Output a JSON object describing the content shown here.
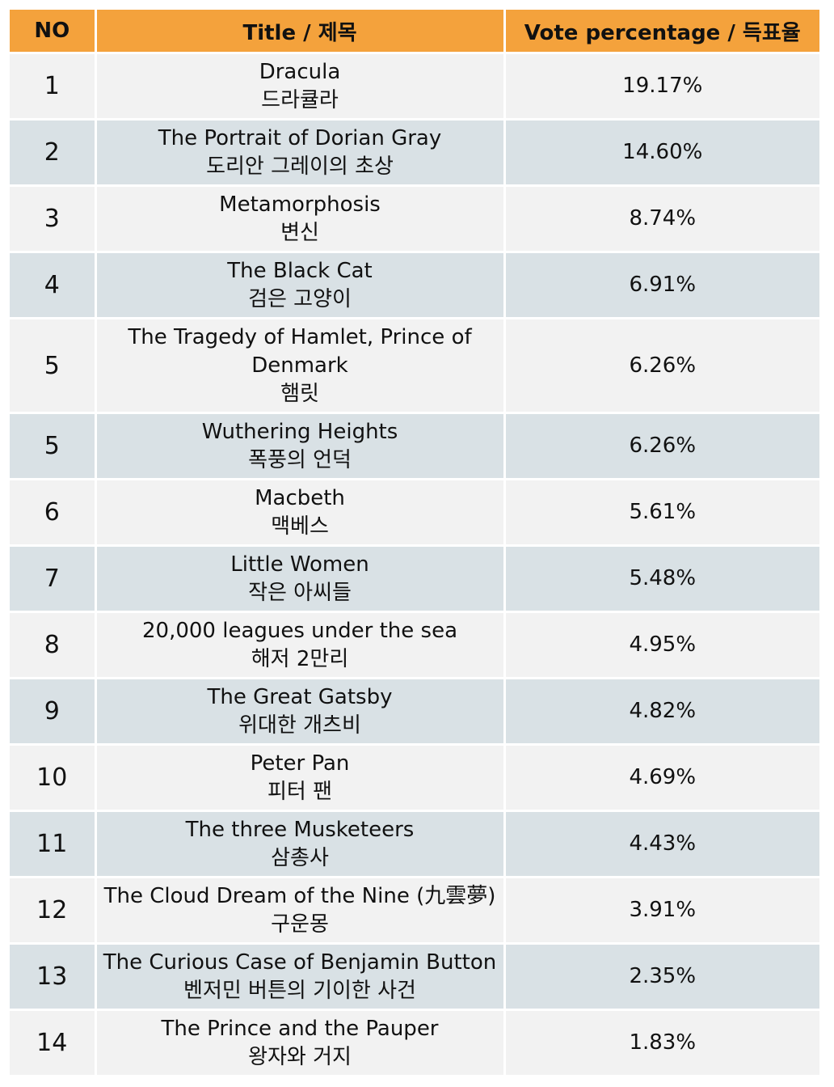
{
  "header": {
    "no": "NO",
    "title": "Title / 제목",
    "vote": "Vote percentage / 득표율"
  },
  "rows": [
    {
      "no": "1",
      "title_en": "Dracula",
      "title_ko": "드라큘라",
      "vote": "19.17%"
    },
    {
      "no": "2",
      "title_en": "The Portrait of Dorian Gray",
      "title_ko": "도리안 그레이의 초상",
      "vote": "14.60%"
    },
    {
      "no": "3",
      "title_en": "Metamorphosis",
      "title_ko": "변신",
      "vote": "8.74%"
    },
    {
      "no": "4",
      "title_en": "The Black Cat",
      "title_ko": "검은 고양이",
      "vote": "6.91%"
    },
    {
      "no": "5",
      "title_en_1": "The Tragedy of Hamlet, Prince of",
      "title_en_2": "Denmark",
      "title_ko": "햄릿",
      "vote": "6.26%"
    },
    {
      "no": "5",
      "title_en": "Wuthering Heights",
      "title_ko": "폭풍의 언덕",
      "vote": "6.26%"
    },
    {
      "no": "6",
      "title_en": "Macbeth",
      "title_ko": "맥베스",
      "vote": "5.61%"
    },
    {
      "no": "7",
      "title_en": "Little Women",
      "title_ko": "작은 아씨들",
      "vote": "5.48%"
    },
    {
      "no": "8",
      "title_en": "20,000 leagues under the sea",
      "title_ko": "해저 2만리",
      "vote": "4.95%"
    },
    {
      "no": "9",
      "title_en": "The Great Gatsby",
      "title_ko": "위대한 개츠비",
      "vote": "4.82%"
    },
    {
      "no": "10",
      "title_en": "Peter Pan",
      "title_ko": "피터 팬",
      "vote": "4.69%"
    },
    {
      "no": "11",
      "title_en": "The three Musketeers",
      "title_ko": "삼총사",
      "vote": "4.43%"
    },
    {
      "no": "12",
      "title_en": "The Cloud Dream of the Nine (九雲夢)",
      "title_ko": "구운몽",
      "vote": "3.91%"
    },
    {
      "no": "13",
      "title_en": "The Curious Case of Benjamin Button",
      "title_ko": "벤저민 버튼의 기이한 사건",
      "vote": "2.35%"
    },
    {
      "no": "14",
      "title_en": "The Prince and the Pauper",
      "title_ko": "왕자와 거지",
      "vote": "1.83%"
    }
  ],
  "colors": {
    "header_bg": "#f4a23c",
    "row_light": "#f2f2f2",
    "row_tinted": "#d9e1e5"
  }
}
